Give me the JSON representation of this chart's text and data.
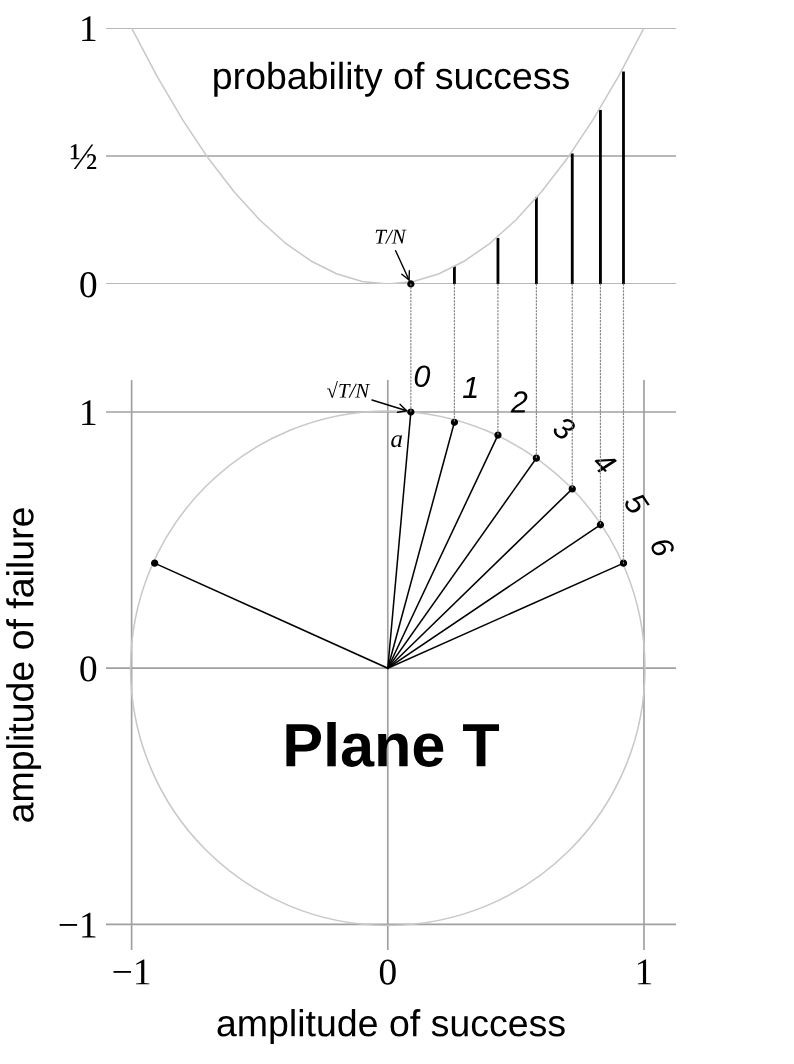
{
  "chart_data": [
    {
      "type": "bar",
      "title": "probability of success",
      "xlim": [
        -1.1,
        1.125
      ],
      "ylim": [
        0,
        1
      ],
      "yticks": [
        0,
        {
          "value": 0.5,
          "label": "½"
        },
        1
      ],
      "grid": "y",
      "tick_labels": "y",
      "series": [
        {
          "type": "line",
          "color": "#c8c8c8",
          "x": [
            -1,
            -0.9,
            -0.8,
            -0.7,
            -0.6,
            -0.5,
            -0.4,
            -0.3,
            -0.2,
            -0.1,
            0,
            0.1,
            0.2,
            0.3,
            0.4,
            0.5,
            0.6,
            0.7,
            0.8,
            0.9,
            1
          ],
          "values": [
            1,
            0.81,
            0.64,
            0.49,
            0.36,
            0.25,
            0.16,
            0.09,
            0.04,
            0.01,
            0,
            0.01,
            0.04,
            0.09,
            0.16,
            0.25,
            0.36,
            0.49,
            0.64,
            0.81,
            1
          ]
        },
        {
          "type": "bar",
          "color": "#000000",
          "x": [
            0.26,
            0.43,
            0.58,
            0.72,
            0.83,
            0.92
          ],
          "values": [
            0.07,
            0.18,
            0.34,
            0.51,
            0.68,
            0.83
          ]
        },
        {
          "type": "scatter",
          "color": "#000000",
          "marker": "circle",
          "x": [
            0.09
          ],
          "values": [
            0
          ]
        }
      ],
      "annotations": [
        {
          "text": "T/N",
          "x": 0.09,
          "y": 0
        }
      ]
    },
    {
      "type": "line",
      "xlabel": "amplitude of success",
      "ylabel": "amplitude of failure",
      "xlim": [
        -1.1,
        1.125
      ],
      "ylim": [
        -1.1,
        1.125
      ],
      "xticks": [
        {
          "value": -1,
          "label": "−1"
        },
        0,
        1
      ],
      "yticks": [
        {
          "value": -1,
          "label": "−1"
        },
        0,
        1
      ],
      "grid": true,
      "series": [
        {
          "color": "#000000",
          "x": [
            0,
            0.09
          ],
          "values": [
            0,
            1
          ]
        },
        {
          "color": "#000000",
          "x": [
            0,
            0.26
          ],
          "values": [
            0,
            0.96
          ]
        },
        {
          "color": "#000000",
          "x": [
            0,
            0.43
          ],
          "values": [
            0,
            0.91
          ]
        },
        {
          "color": "#000000",
          "x": [
            0,
            0.58
          ],
          "values": [
            0,
            0.82
          ]
        },
        {
          "color": "#000000",
          "x": [
            0,
            0.72
          ],
          "values": [
            0,
            0.7
          ]
        },
        {
          "color": "#000000",
          "x": [
            0,
            0.83
          ],
          "values": [
            0,
            0.56
          ]
        },
        {
          "color": "#000000",
          "x": [
            0,
            0.92
          ],
          "values": [
            0,
            0.41
          ]
        },
        {
          "color": "#000000",
          "x": [
            0,
            -0.91
          ],
          "values": [
            0,
            0.41
          ]
        },
        {
          "type": "scatter",
          "color": "#000000",
          "marker": "circle",
          "x": [
            0.09,
            0.26,
            0.43,
            0.58,
            0.72,
            0.83,
            0.92,
            -0.91
          ],
          "values": [
            1,
            0.96,
            0.91,
            0.82,
            0.7,
            0.56,
            0.41,
            0.41
          ]
        }
      ],
      "annotations": [
        {
          "text": "√T/N",
          "x": 0.09,
          "y": 1
        },
        "a",
        {
          "text": "0",
          "x": 0.09,
          "y": 1
        },
        {
          "text": "1",
          "x": 0.26,
          "y": 0.96
        },
        {
          "text": "2",
          "x": 0.43,
          "y": 0.91
        },
        {
          "text": "3",
          "x": 0.58,
          "y": 0.82
        },
        {
          "text": "4",
          "x": 0.72,
          "y": 0.7
        },
        {
          "text": "5",
          "x": 0.83,
          "y": 0.56
        },
        {
          "text": "6",
          "x": 0.92,
          "y": 0.41
        },
        "Plane T"
      ]
    }
  ]
}
